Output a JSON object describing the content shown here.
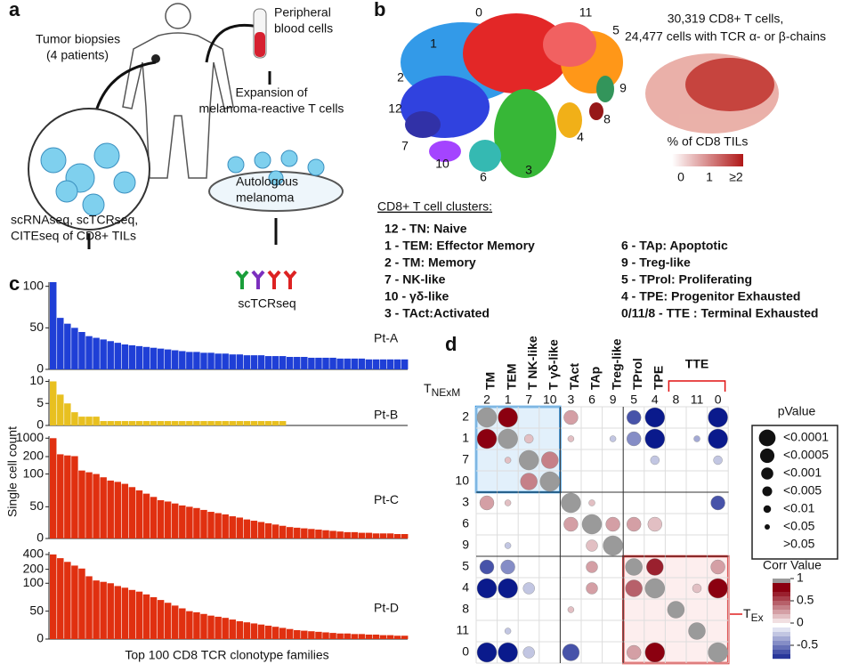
{
  "panel_labels": [
    "a",
    "b",
    "c",
    "d"
  ],
  "diagram": {
    "biopsies": [
      "Tumor biopsies",
      "(4 patients)"
    ],
    "blood": [
      "Peripheral",
      "blood cells"
    ],
    "expansion": [
      "Expansion of",
      "melanoma-reactive T cells"
    ],
    "melanoma": [
      "Autologous",
      "melanoma"
    ],
    "assays": [
      "scRNAseq, scTCRseq,",
      "CITEseq of CD8+ TILs"
    ],
    "assay2": "scTCRseq"
  },
  "umap": {
    "title": [
      "30,319 CD8+ T cells,",
      "24,477 cells with TCR α- or β-chains"
    ],
    "cluster_labels": [
      {
        "text": "0",
        "color": "#e01010"
      },
      {
        "text": "11",
        "color": "#f05050"
      },
      {
        "text": "5",
        "color": "#ff8c00"
      },
      {
        "text": "1",
        "color": "#1e90e6"
      },
      {
        "text": "2",
        "color": "#1a2edc"
      },
      {
        "text": "9",
        "color": "#1e8a4a"
      },
      {
        "text": "12",
        "color": "#111111"
      },
      {
        "text": "8",
        "color": "#8b0000"
      },
      {
        "text": "4",
        "color": "#f0a800"
      },
      {
        "text": "7",
        "color": "#1b1b9e"
      },
      {
        "text": "10",
        "color": "#9b30ff"
      },
      {
        "text": "6",
        "color": "#20b2aa"
      },
      {
        "text": "3",
        "color": "#22b022"
      }
    ],
    "colorbar_title": "% of CD8 TILs",
    "colorbar_ticks": [
      "0",
      "1",
      "≥2"
    ]
  },
  "clusters": {
    "title": "CD8+ T cell clusters:",
    "left": [
      {
        "text": "12 - TN: Naive",
        "color": "#111111"
      },
      {
        "text": "1 - TEM: Effector Memory",
        "color": "#1e90e6"
      },
      {
        "text": "2 - TM: Memory",
        "color": "#1a2edc"
      },
      {
        "text": "7 - NK-like",
        "color": "#1b1b9e"
      },
      {
        "text": "10 - γδ-like",
        "color": "#9b30ff"
      },
      {
        "text": "3 - TAct:Activated",
        "color": "#22b022"
      }
    ],
    "right": [
      {
        "text": "6 - TAp: Apoptotic",
        "color": "#20b2aa"
      },
      {
        "text": "9 - Treg-like",
        "color": "#1e8a4a"
      },
      {
        "text": "5 - TProl: Proliferating",
        "color": "#ff8c00"
      },
      {
        "text": "4 - TPE: Progenitor Exhausted",
        "color": "#f0a800"
      },
      {
        "text": "0/11/8 - TTE : Terminal Exhausted",
        "color": "#e01010"
      }
    ]
  },
  "panel_c": {
    "ylabel": "Single cell count",
    "xlabel": "Top 100 CD8 TCR clonotype families"
  },
  "chart_data": [
    {
      "type": "bar",
      "title": "Pt-A",
      "color": "#1f3fd6",
      "ylim": [
        0,
        105
      ],
      "yticks": [
        0,
        50,
        100
      ],
      "values": [
        105,
        62,
        55,
        50,
        45,
        40,
        38,
        36,
        34,
        32,
        30,
        29,
        28,
        27,
        26,
        25,
        24,
        23,
        22,
        21,
        21,
        20,
        20,
        19,
        19,
        18,
        18,
        17,
        17,
        17,
        16,
        16,
        16,
        15,
        15,
        15,
        14,
        14,
        14,
        14,
        13,
        13,
        13,
        13,
        12,
        12,
        12,
        12,
        12,
        12
      ]
    },
    {
      "type": "bar",
      "title": "Pt-B",
      "color": "#e8c020",
      "ylim": [
        0,
        10.5
      ],
      "yticks": [
        0,
        5,
        10
      ],
      "values": [
        10,
        7,
        5,
        3,
        2,
        2,
        2,
        1,
        1,
        1,
        1,
        1,
        1,
        1,
        1,
        1,
        1,
        1,
        1,
        1,
        1,
        1,
        1,
        1,
        1,
        1,
        1,
        1,
        1,
        1,
        1,
        1,
        1
      ]
    },
    {
      "type": "bar",
      "title": "Pt-C",
      "color": "#e03010",
      "broken": true,
      "ylim": [
        0,
        1000
      ],
      "yticks": [
        0,
        50,
        100,
        200,
        1000
      ],
      "values": [
        1000,
        300,
        250,
        220,
        120,
        110,
        100,
        95,
        90,
        88,
        85,
        80,
        75,
        70,
        65,
        60,
        58,
        55,
        52,
        50,
        48,
        45,
        42,
        40,
        38,
        35,
        33,
        30,
        28,
        26,
        24,
        22,
        20,
        18,
        17,
        16,
        15,
        14,
        13,
        12,
        11,
        10,
        10,
        9,
        9,
        8,
        8,
        8,
        7,
        7
      ]
    },
    {
      "type": "bar",
      "title": "Pt-D",
      "color": "#e03010",
      "broken": true,
      "ylim": [
        0,
        400
      ],
      "yticks": [
        0,
        50,
        100,
        200,
        400
      ],
      "values": [
        400,
        350,
        300,
        250,
        210,
        150,
        120,
        110,
        100,
        95,
        92,
        88,
        85,
        80,
        75,
        70,
        65,
        60,
        55,
        50,
        48,
        45,
        42,
        40,
        38,
        35,
        32,
        30,
        28,
        26,
        24,
        22,
        20,
        18,
        16,
        15,
        14,
        13,
        12,
        11,
        10,
        10,
        9,
        9,
        8,
        8,
        7,
        7,
        6,
        6
      ]
    },
    {
      "type": "bubble-matrix",
      "labels": [
        {
          "text": "2",
          "color": "#1a2edc"
        },
        {
          "text": "1",
          "color": "#1e90e6"
        },
        {
          "text": "7",
          "color": "#1b1b9e"
        },
        {
          "text": "10",
          "color": "#9b30ff"
        },
        {
          "text": "3",
          "color": "#22b022"
        },
        {
          "text": "6",
          "color": "#20b2aa"
        },
        {
          "text": "9",
          "color": "#1e8a4a"
        },
        {
          "text": "5",
          "color": "#ff8c00"
        },
        {
          "text": "4",
          "color": "#f0a800"
        },
        {
          "text": "8",
          "color": "#8b0000"
        },
        {
          "text": "11",
          "color": "#f05050"
        },
        {
          "text": "0",
          "color": "#e01010"
        }
      ],
      "groups": [
        {
          "text": "TM",
          "color": "#1a2edc"
        },
        {
          "text": "TEM",
          "color": "#1e90e6"
        },
        {
          "text": "T NK-like",
          "color": "#1b1b9e"
        },
        {
          "text": "T γδ-like",
          "color": "#9b30ff"
        },
        {
          "text": "TAct",
          "color": "#22b022"
        },
        {
          "text": "TAp",
          "color": "#20b2aa"
        },
        {
          "text": "Treg-like",
          "color": "#1e8a4a"
        },
        {
          "text": "TProl",
          "color": "#ff8c00"
        },
        {
          "text": "TPE",
          "color": "#f0a800"
        }
      ],
      "tte_label": "TTE",
      "nexm": {
        "main": "T",
        "sub": "NExM"
      },
      "ex": {
        "main": "T",
        "sub": "Ex"
      },
      "p_title": "pValue",
      "p_levels": [
        "<0.0001",
        "<0.0005",
        "<0.001",
        "<0.005",
        "<0.01",
        "<0.05",
        ">0.05"
      ],
      "corr_title": "Corr Value",
      "corr_lim": [
        -0.8,
        1
      ],
      "corr_ticks": [
        1,
        0.5,
        0,
        -0.5
      ],
      "cells": [
        [
          0,
          0,
          1,
          0
        ],
        [
          0,
          1,
          0.8,
          0
        ],
        [
          0,
          4,
          0.3,
          2
        ],
        [
          0,
          7,
          -0.6,
          2
        ],
        [
          0,
          8,
          -0.8,
          0
        ],
        [
          0,
          11,
          -0.8,
          0
        ],
        [
          1,
          0,
          0.8,
          0
        ],
        [
          1,
          1,
          1,
          0
        ],
        [
          1,
          2,
          0.2,
          4
        ],
        [
          1,
          4,
          0.2,
          5
        ],
        [
          1,
          6,
          -0.2,
          5
        ],
        [
          1,
          7,
          -0.4,
          2
        ],
        [
          1,
          8,
          -0.8,
          0
        ],
        [
          1,
          10,
          -0.3,
          5
        ],
        [
          1,
          11,
          -0.8,
          0
        ],
        [
          2,
          1,
          0.2,
          5
        ],
        [
          2,
          2,
          1,
          0
        ],
        [
          2,
          3,
          0.4,
          1
        ],
        [
          2,
          8,
          -0.2,
          4
        ],
        [
          2,
          11,
          -0.2,
          4
        ],
        [
          3,
          2,
          0.4,
          1
        ],
        [
          3,
          3,
          1,
          0
        ],
        [
          4,
          0,
          0.3,
          2
        ],
        [
          4,
          1,
          0.2,
          5
        ],
        [
          4,
          4,
          1,
          0
        ],
        [
          4,
          5,
          0.2,
          5
        ],
        [
          4,
          11,
          -0.6,
          2
        ],
        [
          5,
          4,
          0.3,
          2
        ],
        [
          5,
          5,
          1,
          0
        ],
        [
          5,
          6,
          0.3,
          2
        ],
        [
          5,
          7,
          0.3,
          2
        ],
        [
          5,
          8,
          0.2,
          2
        ],
        [
          6,
          1,
          -0.2,
          5
        ],
        [
          6,
          5,
          0.2,
          3
        ],
        [
          6,
          6,
          1,
          0
        ],
        [
          7,
          0,
          -0.6,
          2
        ],
        [
          7,
          1,
          -0.4,
          2
        ],
        [
          7,
          5,
          0.3,
          3
        ],
        [
          7,
          7,
          1,
          1
        ],
        [
          7,
          8,
          0.7,
          1
        ],
        [
          7,
          11,
          0.3,
          2
        ],
        [
          8,
          0,
          -0.8,
          0
        ],
        [
          8,
          1,
          -0.8,
          0
        ],
        [
          8,
          2,
          -0.2,
          3
        ],
        [
          8,
          5,
          0.3,
          3
        ],
        [
          8,
          7,
          0.5,
          1
        ],
        [
          8,
          8,
          1,
          0
        ],
        [
          8,
          10,
          0.2,
          4
        ],
        [
          8,
          11,
          0.8,
          0
        ],
        [
          9,
          4,
          0.2,
          5
        ],
        [
          9,
          9,
          1,
          1
        ],
        [
          10,
          1,
          -0.2,
          5
        ],
        [
          10,
          10,
          1,
          1
        ],
        [
          11,
          0,
          -0.8,
          0
        ],
        [
          11,
          1,
          -0.8,
          0
        ],
        [
          11,
          2,
          -0.2,
          3
        ],
        [
          11,
          4,
          -0.6,
          1
        ],
        [
          11,
          7,
          0.3,
          2
        ],
        [
          11,
          8,
          0.8,
          0
        ],
        [
          11,
          11,
          1,
          0
        ]
      ]
    }
  ]
}
